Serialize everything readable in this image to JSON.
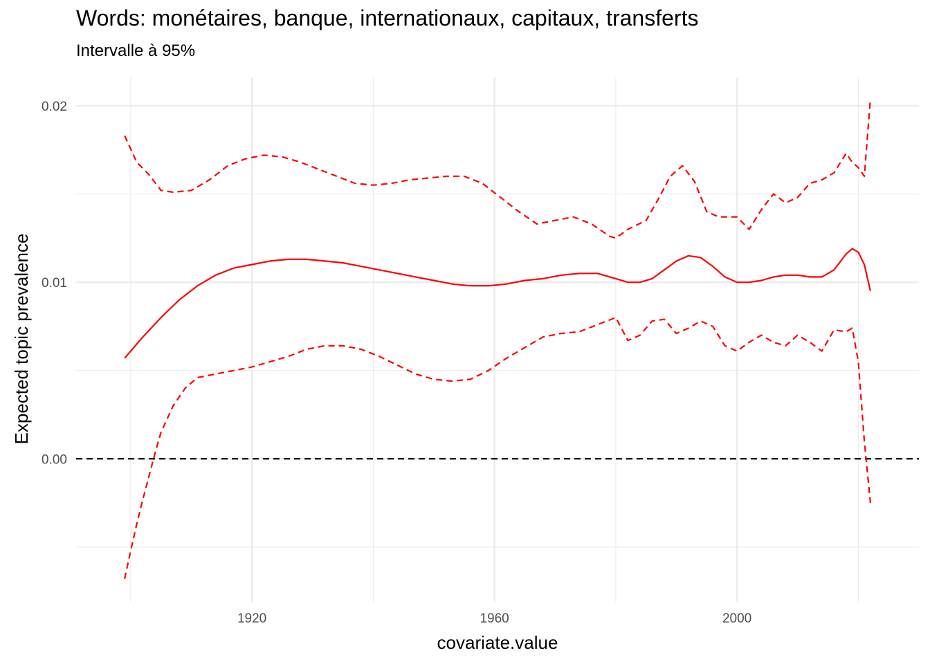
{
  "chart_data": {
    "type": "line",
    "title": "Words: monétaires, banque, internationaux, capitaux, transferts",
    "subtitle": "Intervalle à 95%",
    "xlabel": "covariate.value",
    "ylabel": "Expected topic prevalence",
    "xlim": [
      1891,
      2030
    ],
    "ylim": [
      -0.0081,
      0.0216
    ],
    "x_ticks": [
      {
        "value": 1920,
        "label": "1920"
      },
      {
        "value": 1960,
        "label": "1960"
      },
      {
        "value": 2000,
        "label": "2000"
      }
    ],
    "y_ticks": [
      {
        "value": 0.0,
        "label": "0.00"
      },
      {
        "value": 0.01,
        "label": "0.01"
      },
      {
        "value": 0.02,
        "label": "0.02"
      }
    ],
    "grid": true,
    "reference_line": {
      "y": 0.0,
      "style": "dashed",
      "color": "#000000"
    },
    "colors": {
      "series": "#ff0000",
      "grid": "#ebebeb",
      "reference": "#000000"
    },
    "series": [
      {
        "role": "estimate",
        "style": "solid",
        "x": [
          1899,
          1902,
          1905,
          1908,
          1911,
          1914,
          1917,
          1920,
          1923,
          1926,
          1929,
          1932,
          1935,
          1938,
          1941,
          1944,
          1947,
          1950,
          1953,
          1956,
          1959,
          1962,
          1965,
          1968,
          1971,
          1974,
          1977,
          1980,
          1982,
          1984,
          1986,
          1988,
          1990,
          1992,
          1994,
          1996,
          1998,
          2000,
          2002,
          2004,
          2006,
          2008,
          2010,
          2012,
          2014,
          2016,
          2018,
          2019,
          2020,
          2021,
          2022
        ],
        "y": [
          0.0057,
          0.0069,
          0.008,
          0.009,
          0.0098,
          0.0104,
          0.0108,
          0.011,
          0.0112,
          0.0113,
          0.0113,
          0.0112,
          0.0111,
          0.0109,
          0.0107,
          0.0105,
          0.0103,
          0.0101,
          0.0099,
          0.0098,
          0.0098,
          0.0099,
          0.0101,
          0.0102,
          0.0104,
          0.0105,
          0.0105,
          0.0102,
          0.01,
          0.01,
          0.0102,
          0.0107,
          0.0112,
          0.0115,
          0.0114,
          0.0109,
          0.0103,
          0.01,
          0.01,
          0.0101,
          0.0103,
          0.0104,
          0.0104,
          0.0103,
          0.0103,
          0.0107,
          0.0116,
          0.0119,
          0.0117,
          0.011,
          0.0095
        ]
      },
      {
        "role": "upper 95%",
        "style": "dashed",
        "x": [
          1899,
          1901,
          1903,
          1905,
          1907,
          1910,
          1913,
          1916,
          1919,
          1922,
          1925,
          1928,
          1931,
          1934,
          1937,
          1940,
          1943,
          1946,
          1949,
          1952,
          1955,
          1958,
          1961,
          1964,
          1967,
          1970,
          1973,
          1976,
          1979,
          1980,
          1982,
          1985,
          1987,
          1989,
          1991,
          1993,
          1995,
          1997,
          2000,
          2002,
          2004,
          2006,
          2008,
          2010,
          2012,
          2014,
          2016,
          2018,
          2019,
          2020,
          2021,
          2022
        ],
        "y": [
          0.0183,
          0.0168,
          0.0161,
          0.0152,
          0.0151,
          0.0152,
          0.0158,
          0.0166,
          0.017,
          0.0172,
          0.0171,
          0.0168,
          0.0164,
          0.016,
          0.0156,
          0.0155,
          0.0156,
          0.0158,
          0.0159,
          0.016,
          0.016,
          0.0156,
          0.0148,
          0.014,
          0.0133,
          0.0135,
          0.0137,
          0.0133,
          0.0126,
          0.0125,
          0.013,
          0.0135,
          0.0147,
          0.016,
          0.0166,
          0.0157,
          0.014,
          0.0137,
          0.0137,
          0.013,
          0.0141,
          0.015,
          0.0145,
          0.0148,
          0.0156,
          0.0158,
          0.0162,
          0.0173,
          0.0168,
          0.0165,
          0.016,
          0.0204
        ]
      },
      {
        "role": "lower 95%",
        "style": "dashed",
        "x": [
          1899,
          1900,
          1901,
          1902,
          1903,
          1904,
          1905,
          1907,
          1909,
          1911,
          1914,
          1917,
          1920,
          1923,
          1926,
          1929,
          1932,
          1935,
          1938,
          1941,
          1944,
          1947,
          1950,
          1953,
          1956,
          1959,
          1962,
          1965,
          1968,
          1971,
          1974,
          1977,
          1980,
          1982,
          1984,
          1986,
          1988,
          1990,
          1992,
          1994,
          1996,
          1998,
          2000,
          2002,
          2004,
          2006,
          2008,
          2010,
          2012,
          2014,
          2016,
          2018,
          2019,
          2020,
          2021,
          2022
        ],
        "y": [
          -0.0068,
          -0.0052,
          -0.0037,
          -0.0023,
          -0.001,
          0.0003,
          0.0015,
          0.003,
          0.004,
          0.0046,
          0.0048,
          0.005,
          0.0052,
          0.0055,
          0.0058,
          0.0062,
          0.0064,
          0.0064,
          0.0062,
          0.0058,
          0.0053,
          0.0048,
          0.0045,
          0.0044,
          0.0045,
          0.005,
          0.0057,
          0.0063,
          0.0069,
          0.0071,
          0.0072,
          0.0076,
          0.008,
          0.0067,
          0.007,
          0.0078,
          0.0079,
          0.0071,
          0.0074,
          0.0078,
          0.0075,
          0.0064,
          0.0061,
          0.0066,
          0.007,
          0.0066,
          0.0064,
          0.007,
          0.0066,
          0.0061,
          0.0073,
          0.0072,
          0.0074,
          0.0055,
          0.001,
          -0.0025
        ]
      }
    ]
  }
}
